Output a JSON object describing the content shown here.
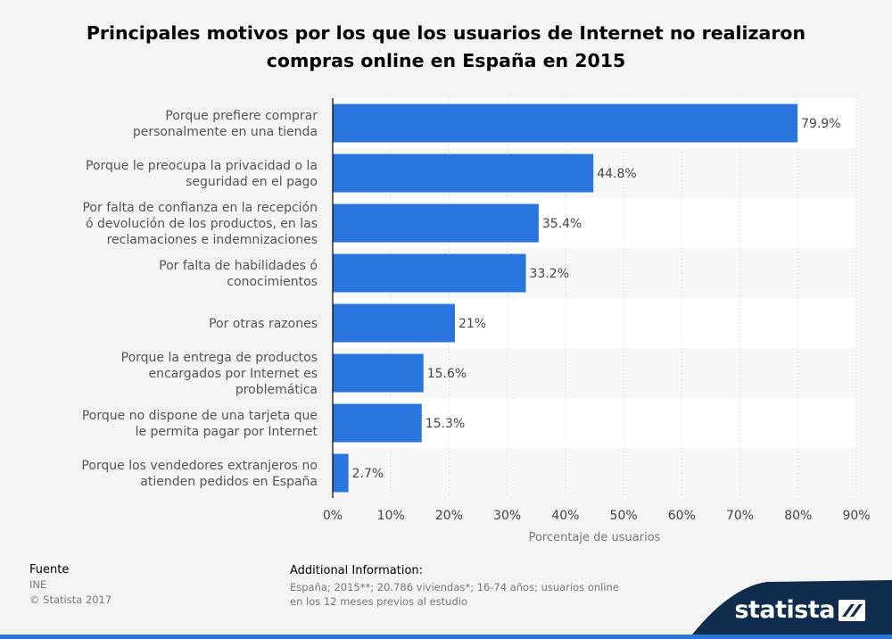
{
  "chart_data": {
    "type": "bar",
    "orientation": "horizontal",
    "title": "Principales motivos por los que los usuarios de Internet no realizaron compras online en España en 2015",
    "title_lines": [
      "Principales motivos por los que los usuarios de Internet no realizaron",
      "compras online en España en 2015"
    ],
    "xlabel": "Porcentaje de usuarios",
    "ylabel": "",
    "xlim": [
      0,
      90
    ],
    "xticks": [
      "0%",
      "10%",
      "20%",
      "30%",
      "40%",
      "50%",
      "60%",
      "70%",
      "80%",
      "90%"
    ],
    "grid": true,
    "categories": [
      [
        "Porque prefiere comprar",
        "personalmente en una tienda"
      ],
      [
        "Porque le preocupa la privacidad o la",
        "seguridad en el pago"
      ],
      [
        "Por falta de confianza en la recepción",
        "ó devolución de los productos, en las",
        "reclamaciones e indemnizaciones"
      ],
      [
        "Por falta de habilidades ó",
        "conocimientos"
      ],
      [
        "Por otras razones"
      ],
      [
        "Porque la entrega de productos",
        "encargados por Internet es",
        "problemática"
      ],
      [
        "Porque no dispone de una tarjeta que",
        "le permita pagar por Internet"
      ],
      [
        "Porque los vendedores extranjeros no",
        "atienden pedidos en España"
      ]
    ],
    "values": [
      79.9,
      44.8,
      35.4,
      33.2,
      21,
      15.6,
      15.3,
      2.7
    ],
    "value_labels": [
      "79.9%",
      "44.8%",
      "35.4%",
      "33.2%",
      "21%",
      "15.6%",
      "15.3%",
      "2.7%"
    ],
    "bar_color": "#2876dd"
  },
  "footer": {
    "source_label": "Fuente",
    "source_value": "INE",
    "copyright": "© Statista 2017",
    "info_label": "Additional Information:",
    "info_lines": [
      "España; 2015**; 20.786 viviendas*; 16-74 años; usuarios online",
      "en los 12 meses previos al estudio"
    ]
  },
  "brand": {
    "name": "statista",
    "band_color": "#0f2c4c",
    "accent_color": "#2876dd"
  }
}
